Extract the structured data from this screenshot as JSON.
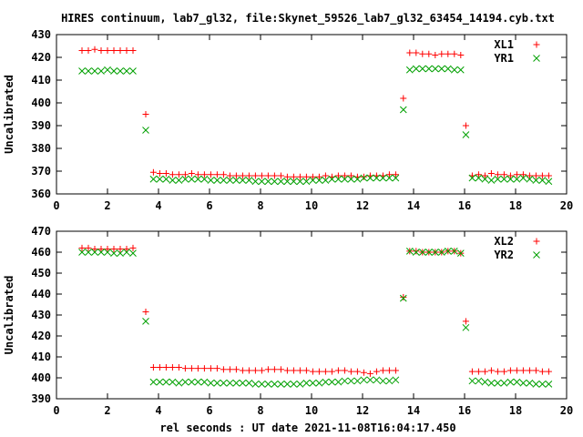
{
  "title": "HIRES continuum, lab7_gl32, file:Skynet_59526_lab7_gl32_63454_14194.cyb.txt",
  "xlabel": "rel seconds : UT date 2021-11-08T16:04:17.450",
  "chart_data": [
    {
      "type": "scatter",
      "ylabel": "Uncalibrated",
      "xlim": [
        0,
        20
      ],
      "ylim": [
        360,
        430
      ],
      "xticks": [
        0,
        2,
        4,
        6,
        8,
        10,
        12,
        14,
        16,
        18,
        20
      ],
      "yticks": [
        360,
        370,
        380,
        390,
        400,
        410,
        420,
        430
      ],
      "legend_position": "top-right",
      "series": [
        {
          "name": "XL1",
          "marker": "plus",
          "color": "#ff0000",
          "x": [
            1.0,
            1.25,
            1.5,
            1.75,
            2.0,
            2.25,
            2.5,
            2.75,
            3.0,
            3.5,
            3.8,
            4.05,
            4.3,
            4.55,
            4.8,
            5.05,
            5.3,
            5.55,
            5.8,
            6.05,
            6.3,
            6.55,
            6.8,
            7.05,
            7.3,
            7.55,
            7.8,
            8.05,
            8.3,
            8.55,
            8.8,
            9.05,
            9.3,
            9.55,
            9.8,
            10.05,
            10.3,
            10.55,
            10.8,
            11.05,
            11.3,
            11.55,
            11.8,
            12.05,
            12.3,
            12.55,
            12.8,
            13.05,
            13.3,
            13.6,
            13.85,
            14.1,
            14.35,
            14.6,
            14.85,
            15.1,
            15.35,
            15.6,
            15.85,
            16.05,
            16.3,
            16.55,
            16.8,
            17.05,
            17.3,
            17.55,
            17.8,
            18.05,
            18.3,
            18.55,
            18.8,
            19.05,
            19.3
          ],
          "y": [
            423,
            423,
            423.5,
            423,
            423,
            423,
            423,
            423,
            423,
            395,
            369.5,
            369,
            369,
            368.5,
            368.5,
            368.5,
            369,
            368.5,
            368.5,
            368.5,
            368.5,
            368.5,
            368,
            368,
            368,
            368,
            368,
            368,
            368,
            368,
            368,
            367.5,
            367.5,
            367.5,
            367.5,
            367.5,
            367.5,
            368,
            367.5,
            368,
            368,
            368,
            367.5,
            367.5,
            368,
            368,
            368,
            368.5,
            368.5,
            402,
            422,
            422,
            421.5,
            421.5,
            421,
            421.5,
            421.5,
            421.5,
            421,
            390,
            368,
            368.5,
            368,
            369,
            368.5,
            368.5,
            368,
            368.5,
            368.5,
            368,
            368,
            368,
            368
          ]
        },
        {
          "name": "YR1",
          "marker": "cross",
          "color": "#00a000",
          "x": [
            1.0,
            1.25,
            1.5,
            1.75,
            2.0,
            2.25,
            2.5,
            2.75,
            3.0,
            3.5,
            3.8,
            4.05,
            4.3,
            4.55,
            4.8,
            5.05,
            5.3,
            5.55,
            5.8,
            6.05,
            6.3,
            6.55,
            6.8,
            7.05,
            7.3,
            7.55,
            7.8,
            8.05,
            8.3,
            8.55,
            8.8,
            9.05,
            9.3,
            9.55,
            9.8,
            10.05,
            10.3,
            10.55,
            10.8,
            11.05,
            11.3,
            11.55,
            11.8,
            12.05,
            12.3,
            12.55,
            12.8,
            13.05,
            13.3,
            13.6,
            13.85,
            14.1,
            14.35,
            14.6,
            14.85,
            15.1,
            15.35,
            15.6,
            15.85,
            16.05,
            16.3,
            16.55,
            16.8,
            17.05,
            17.3,
            17.55,
            17.8,
            18.05,
            18.3,
            18.55,
            18.8,
            19.05,
            19.3
          ],
          "y": [
            414,
            414,
            414,
            414,
            414.5,
            414,
            414,
            414,
            414,
            388,
            366.5,
            366.5,
            366.5,
            366,
            366,
            366.5,
            366.5,
            366.5,
            366.5,
            366,
            366,
            366,
            366,
            366,
            366,
            366,
            365.5,
            365.5,
            365.5,
            365.5,
            365.5,
            365.5,
            365.5,
            365.5,
            365.5,
            366,
            366,
            366,
            366.5,
            366.5,
            366.5,
            366.5,
            366.5,
            367,
            367,
            367,
            367,
            367,
            367,
            397,
            414.5,
            415,
            415,
            415,
            415,
            415,
            415,
            414.5,
            414.5,
            386,
            367,
            367,
            366.5,
            366,
            366.5,
            366.5,
            366.5,
            366.5,
            367,
            366.5,
            366,
            366,
            365.5
          ]
        }
      ]
    },
    {
      "type": "scatter",
      "ylabel": "Uncalibrated",
      "xlim": [
        0,
        20
      ],
      "ylim": [
        390,
        470
      ],
      "xticks": [
        0,
        2,
        4,
        6,
        8,
        10,
        12,
        14,
        16,
        18,
        20
      ],
      "yticks": [
        390,
        400,
        410,
        420,
        430,
        440,
        450,
        460,
        470
      ],
      "legend_position": "top-right",
      "series": [
        {
          "name": "XL2",
          "marker": "plus",
          "color": "#ff0000",
          "x": [
            1.0,
            1.25,
            1.5,
            1.75,
            2.0,
            2.25,
            2.5,
            2.75,
            3.0,
            3.5,
            3.8,
            4.05,
            4.3,
            4.55,
            4.8,
            5.05,
            5.3,
            5.55,
            5.8,
            6.05,
            6.3,
            6.55,
            6.8,
            7.05,
            7.3,
            7.55,
            7.8,
            8.05,
            8.3,
            8.55,
            8.8,
            9.05,
            9.3,
            9.55,
            9.8,
            10.05,
            10.3,
            10.55,
            10.8,
            11.05,
            11.3,
            11.55,
            11.8,
            12.05,
            12.3,
            12.55,
            12.8,
            13.05,
            13.3,
            13.6,
            13.85,
            14.1,
            14.35,
            14.6,
            14.85,
            15.1,
            15.35,
            15.6,
            15.85,
            16.05,
            16.3,
            16.55,
            16.8,
            17.05,
            17.3,
            17.55,
            17.8,
            18.05,
            18.3,
            18.55,
            18.8,
            19.05,
            19.3
          ],
          "y": [
            462,
            462,
            461.5,
            461.5,
            461.5,
            461.5,
            461.5,
            461.5,
            462,
            431.5,
            405,
            405,
            405,
            405,
            405,
            404.5,
            404.5,
            404.5,
            404.5,
            404.5,
            404.5,
            404,
            404,
            404,
            403.5,
            403.5,
            403.5,
            403.5,
            404,
            404,
            404,
            403.5,
            403.5,
            403.5,
            403.5,
            403,
            403,
            403,
            403,
            403.5,
            403.5,
            403,
            403,
            402.5,
            402,
            403,
            403.5,
            403.5,
            403.5,
            438.5,
            460.5,
            460.5,
            460,
            460,
            460,
            460,
            460.5,
            460.5,
            459.5,
            427,
            403,
            403,
            403,
            403.5,
            403,
            403,
            403.5,
            403.5,
            403.5,
            403.5,
            403.5,
            403,
            403
          ]
        },
        {
          "name": "YR2",
          "marker": "cross",
          "color": "#00a000",
          "x": [
            1.0,
            1.25,
            1.5,
            1.75,
            2.0,
            2.25,
            2.5,
            2.75,
            3.0,
            3.5,
            3.8,
            4.05,
            4.3,
            4.55,
            4.8,
            5.05,
            5.3,
            5.55,
            5.8,
            6.05,
            6.3,
            6.55,
            6.8,
            7.05,
            7.3,
            7.55,
            7.8,
            8.05,
            8.3,
            8.55,
            8.8,
            9.05,
            9.3,
            9.55,
            9.8,
            10.05,
            10.3,
            10.55,
            10.8,
            11.05,
            11.3,
            11.55,
            11.8,
            12.05,
            12.3,
            12.55,
            12.8,
            13.05,
            13.3,
            13.6,
            13.85,
            14.1,
            14.35,
            14.6,
            14.85,
            15.1,
            15.35,
            15.6,
            15.85,
            16.05,
            16.3,
            16.55,
            16.8,
            17.05,
            17.3,
            17.55,
            17.8,
            18.05,
            18.3,
            18.55,
            18.8,
            19.05,
            19.3
          ],
          "y": [
            460,
            460,
            460,
            460,
            460,
            459.5,
            459.5,
            460,
            459.5,
            427,
            398,
            398,
            398,
            398,
            397.5,
            398,
            398,
            398,
            398,
            397.5,
            397.5,
            397.5,
            397.5,
            397.5,
            397.5,
            397.5,
            397,
            397,
            397,
            397,
            397,
            397,
            397,
            397,
            397.5,
            397.5,
            397.5,
            398,
            398,
            398,
            398.5,
            398.5,
            398.5,
            399,
            399,
            399,
            398.5,
            398.5,
            399,
            438,
            460.5,
            460,
            460,
            460,
            460,
            460,
            460.5,
            460.5,
            459.5,
            424,
            398.5,
            398.5,
            398,
            397.5,
            397.5,
            397.5,
            398,
            398,
            397.5,
            397.5,
            397,
            397,
            397
          ]
        }
      ]
    }
  ]
}
